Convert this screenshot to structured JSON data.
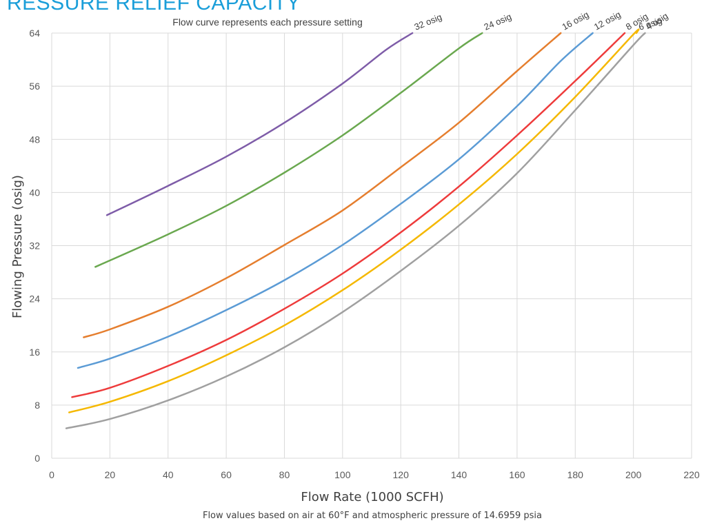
{
  "chart_data": {
    "type": "line",
    "title": "RESSURE RELIEF CAPACITY",
    "subtitle": "Flow curve represents each pressure setting",
    "xlabel": "Flow Rate (1000 SCFH)",
    "ylabel": "Flowing Pressure (osig)",
    "footnote": "Flow values based on air at 60°F and atmospheric pressure of 14.6959 psia",
    "xlim": [
      0,
      220
    ],
    "ylim": [
      0,
      64
    ],
    "x_ticks": [
      "0",
      "20",
      "40",
      "60",
      "80",
      "100",
      "120",
      "140",
      "160",
      "180",
      "200",
      "220"
    ],
    "y_ticks": [
      "0",
      "8",
      "16",
      "24",
      "32",
      "40",
      "48",
      "56",
      "64"
    ],
    "grid": true,
    "series": [
      {
        "name": "32 osig",
        "color": "#7e5ca8",
        "points": [
          [
            19,
            36.6
          ],
          [
            40,
            41.0
          ],
          [
            60,
            45.4
          ],
          [
            80,
            50.5
          ],
          [
            100,
            56.4
          ],
          [
            115,
            61.5
          ],
          [
            124,
            64.0
          ]
        ]
      },
      {
        "name": "24 osig",
        "color": "#6aa84f",
        "points": [
          [
            15,
            28.8
          ],
          [
            40,
            33.7
          ],
          [
            60,
            38.0
          ],
          [
            80,
            43.0
          ],
          [
            100,
            48.6
          ],
          [
            120,
            55.0
          ],
          [
            140,
            61.7
          ],
          [
            148,
            64.0
          ]
        ]
      },
      {
        "name": "16 osig",
        "color": "#e57e2e",
        "points": [
          [
            11,
            18.2
          ],
          [
            20,
            19.4
          ],
          [
            40,
            22.8
          ],
          [
            60,
            27.1
          ],
          [
            80,
            32.1
          ],
          [
            100,
            37.3
          ],
          [
            120,
            43.8
          ],
          [
            140,
            50.5
          ],
          [
            160,
            58.3
          ],
          [
            175,
            64.0
          ]
        ]
      },
      {
        "name": "12 osig",
        "color": "#5b9bd5",
        "points": [
          [
            9,
            13.6
          ],
          [
            20,
            15.0
          ],
          [
            40,
            18.3
          ],
          [
            60,
            22.3
          ],
          [
            80,
            26.8
          ],
          [
            100,
            32.1
          ],
          [
            120,
            38.3
          ],
          [
            140,
            45.0
          ],
          [
            160,
            53.0
          ],
          [
            175,
            59.8
          ],
          [
            186,
            64.0
          ]
        ]
      },
      {
        "name": "8 osig",
        "color": "#ee3b3b",
        "points": [
          [
            7,
            9.2
          ],
          [
            20,
            10.6
          ],
          [
            40,
            13.9
          ],
          [
            60,
            17.8
          ],
          [
            80,
            22.5
          ],
          [
            100,
            27.8
          ],
          [
            120,
            34.0
          ],
          [
            140,
            40.9
          ],
          [
            160,
            48.6
          ],
          [
            180,
            56.8
          ],
          [
            197,
            64.0
          ]
        ]
      },
      {
        "name": "6 osig",
        "color": "#f5b800",
        "points": [
          [
            6,
            6.9
          ],
          [
            20,
            8.5
          ],
          [
            40,
            11.6
          ],
          [
            60,
            15.5
          ],
          [
            80,
            20.0
          ],
          [
            100,
            25.3
          ],
          [
            120,
            31.4
          ],
          [
            140,
            38.2
          ],
          [
            160,
            45.8
          ],
          [
            180,
            54.4
          ],
          [
            200,
            63.8
          ],
          [
            201,
            64.0
          ]
        ]
      },
      {
        "name": "4 osig",
        "color": "#a0a0a0",
        "points": [
          [
            5,
            4.5
          ],
          [
            20,
            5.9
          ],
          [
            40,
            8.7
          ],
          [
            60,
            12.3
          ],
          [
            80,
            16.7
          ],
          [
            100,
            22.0
          ],
          [
            120,
            28.2
          ],
          [
            140,
            35.0
          ],
          [
            160,
            42.9
          ],
          [
            180,
            52.4
          ],
          [
            200,
            62.2
          ],
          [
            204,
            64.0
          ]
        ]
      }
    ]
  }
}
